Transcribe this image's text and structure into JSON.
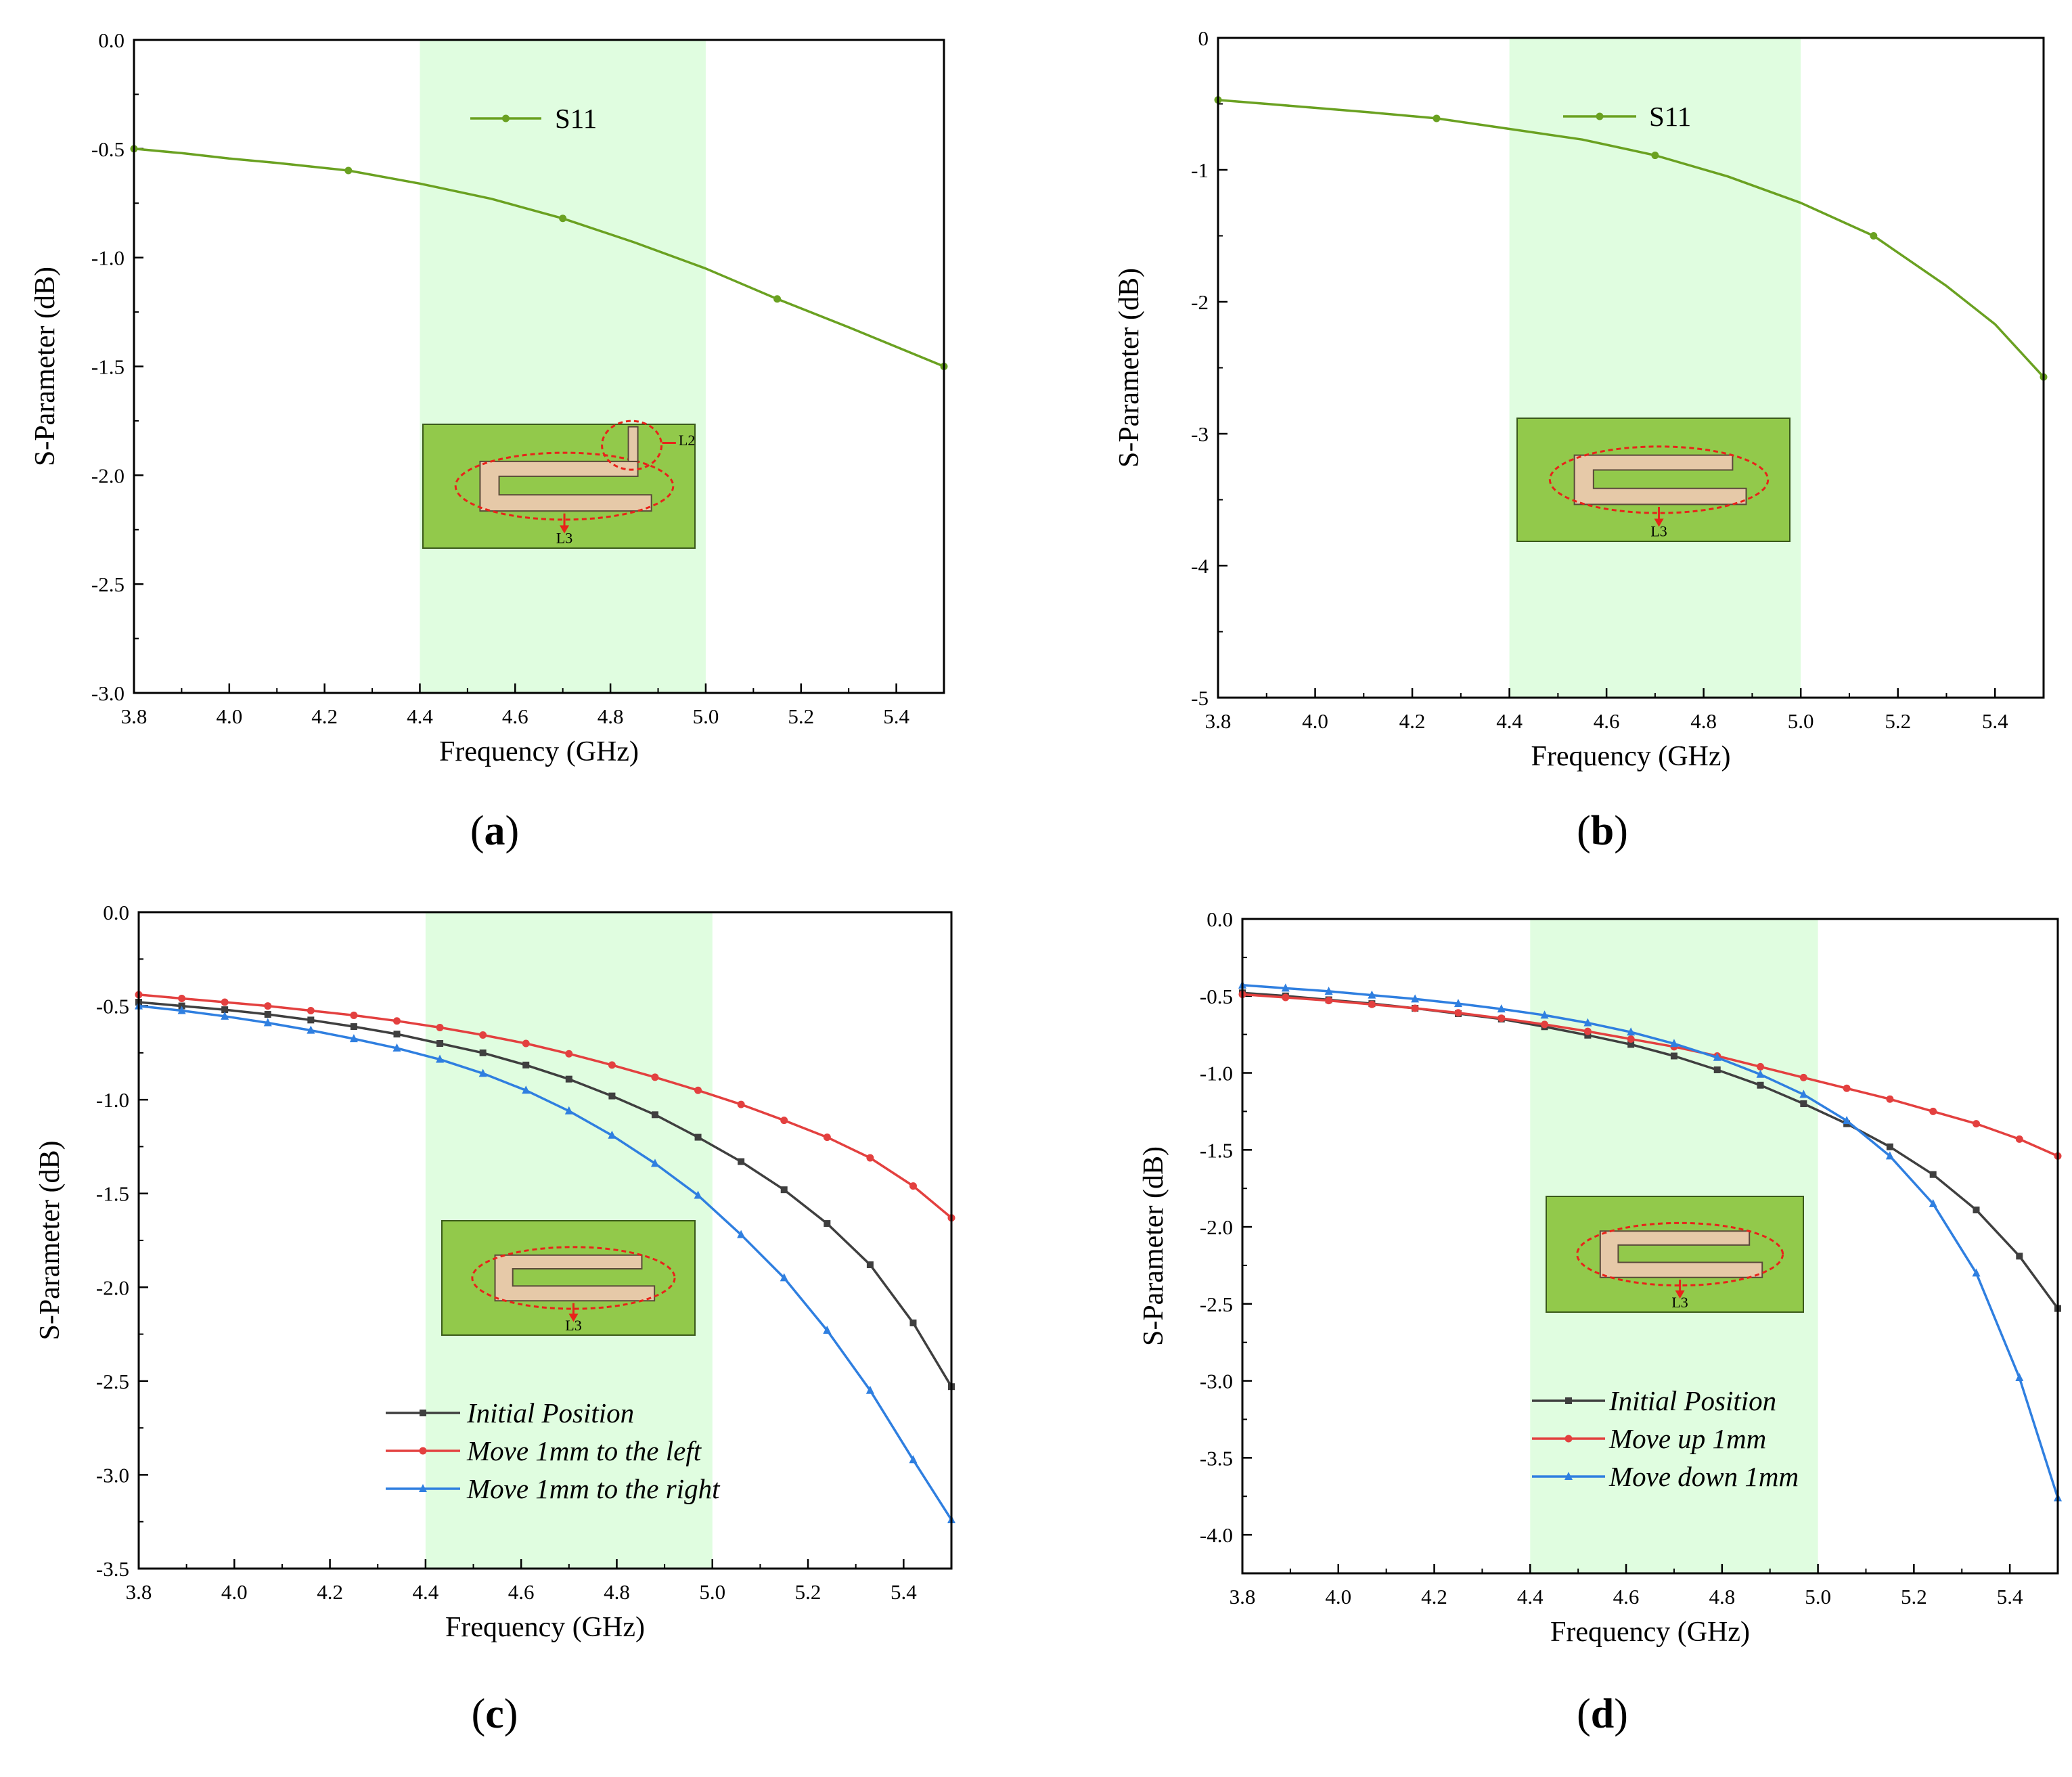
{
  "chart_data": [
    {
      "panel": "a",
      "panel_label": "a",
      "type": "line",
      "xlabel": "Frequency (GHz)",
      "ylabel": "S-Parameter (dB)",
      "xlim": [
        3.8,
        5.5
      ],
      "ylim": [
        -3.0,
        0.0
      ],
      "xticks": [
        "3.8",
        "4.0",
        "4.2",
        "4.4",
        "4.6",
        "4.8",
        "5.0",
        "5.2",
        "5.4"
      ],
      "yticks": [
        "0.0",
        "-0.5",
        "-1.0",
        "-1.5",
        "-2.0",
        "-2.5",
        "-3.0"
      ],
      "highlight_band": [
        4.4,
        5.0
      ],
      "legend_style": "normal",
      "inset": {
        "labels": [
          "L2",
          "L3"
        ]
      },
      "series": [
        {
          "name": "S11",
          "color": "#6aa121",
          "marker": "circle",
          "x": [
            3.8,
            3.9,
            4.0,
            4.1,
            4.25,
            4.4,
            4.55,
            4.7,
            4.85,
            5.0,
            5.15,
            5.3,
            5.5
          ],
          "values": [
            -0.5,
            -0.52,
            -0.545,
            -0.565,
            -0.6,
            -0.66,
            -0.73,
            -0.82,
            -0.93,
            -1.05,
            -1.19,
            -1.32,
            -1.5
          ],
          "marker_x": [
            3.8,
            4.25,
            4.7,
            5.15,
            5.5
          ]
        }
      ]
    },
    {
      "panel": "b",
      "panel_label": "b",
      "type": "line",
      "xlabel": "Frequency (GHz)",
      "ylabel": "S-Parameter (dB)",
      "xlim": [
        3.8,
        5.5
      ],
      "ylim": [
        -5,
        0
      ],
      "xticks": [
        "3.8",
        "4.0",
        "4.2",
        "4.4",
        "4.6",
        "4.8",
        "5.0",
        "5.2",
        "5.4"
      ],
      "yticks": [
        "0",
        "-1",
        "-2",
        "-3",
        "-4",
        "-5"
      ],
      "highlight_band": [
        4.4,
        5.0
      ],
      "legend_style": "normal",
      "inset": {
        "labels": [
          "L3"
        ]
      },
      "series": [
        {
          "name": "S11",
          "color": "#6aa121",
          "marker": "circle",
          "x": [
            3.8,
            3.9,
            4.0,
            4.1,
            4.25,
            4.4,
            4.55,
            4.7,
            4.85,
            5.0,
            5.15,
            5.3,
            5.4,
            5.5
          ],
          "values": [
            -0.47,
            -0.5,
            -0.53,
            -0.56,
            -0.61,
            -0.69,
            -0.77,
            -0.89,
            -1.05,
            -1.25,
            -1.5,
            -1.88,
            -2.17,
            -2.57
          ],
          "marker_x": [
            3.8,
            4.25,
            4.7,
            5.15,
            5.5
          ]
        }
      ]
    },
    {
      "panel": "c",
      "panel_label": "c",
      "type": "line",
      "xlabel": "Frequency (GHz)",
      "ylabel": "S-Parameter (dB)",
      "xlim": [
        3.8,
        5.5
      ],
      "ylim": [
        -3.5,
        0.0
      ],
      "xticks": [
        "3.8",
        "4.0",
        "4.2",
        "4.4",
        "4.6",
        "4.8",
        "5.0",
        "5.2",
        "5.4"
      ],
      "yticks": [
        "0.0",
        "-0.5",
        "-1.0",
        "-1.5",
        "-2.0",
        "-2.5",
        "-3.0",
        "-3.5"
      ],
      "highlight_band": [
        4.4,
        5.0
      ],
      "legend_style": "italic",
      "inset": {
        "labels": [
          "L3"
        ]
      },
      "series": [
        {
          "name": "Initial Position",
          "color": "#3f3f3f",
          "marker": "square",
          "x": [
            3.8,
            3.89,
            3.98,
            4.07,
            4.16,
            4.25,
            4.34,
            4.43,
            4.52,
            4.61,
            4.7,
            4.79,
            4.88,
            4.97,
            5.06,
            5.15,
            5.24,
            5.33,
            5.42,
            5.5
          ],
          "values": [
            -0.48,
            -0.5,
            -0.52,
            -0.545,
            -0.575,
            -0.61,
            -0.65,
            -0.7,
            -0.75,
            -0.815,
            -0.89,
            -0.98,
            -1.08,
            -1.2,
            -1.33,
            -1.48,
            -1.66,
            -1.88,
            -2.19,
            -2.53
          ]
        },
        {
          "name": "Move 1mm to the left",
          "color": "#e3403f",
          "marker": "circle",
          "x": [
            3.8,
            3.89,
            3.98,
            4.07,
            4.16,
            4.25,
            4.34,
            4.43,
            4.52,
            4.61,
            4.7,
            4.79,
            4.88,
            4.97,
            5.06,
            5.15,
            5.24,
            5.33,
            5.42,
            5.5
          ],
          "values": [
            -0.44,
            -0.46,
            -0.48,
            -0.5,
            -0.525,
            -0.55,
            -0.58,
            -0.615,
            -0.655,
            -0.7,
            -0.755,
            -0.815,
            -0.88,
            -0.95,
            -1.025,
            -1.11,
            -1.2,
            -1.31,
            -1.46,
            -1.63
          ]
        },
        {
          "name": "Move 1mm to the right",
          "color": "#2f7fe0",
          "marker": "triangle",
          "x": [
            3.8,
            3.89,
            3.98,
            4.07,
            4.16,
            4.25,
            4.34,
            4.43,
            4.52,
            4.61,
            4.7,
            4.79,
            4.88,
            4.97,
            5.06,
            5.15,
            5.24,
            5.33,
            5.42,
            5.5
          ],
          "values": [
            -0.5,
            -0.525,
            -0.555,
            -0.59,
            -0.63,
            -0.675,
            -0.725,
            -0.785,
            -0.86,
            -0.95,
            -1.06,
            -1.19,
            -1.34,
            -1.51,
            -1.72,
            -1.95,
            -2.23,
            -2.55,
            -2.92,
            -3.24
          ]
        }
      ]
    },
    {
      "panel": "d",
      "panel_label": "d",
      "type": "line",
      "xlabel": "Frequency (GHz)",
      "ylabel": "S-Parameter (dB)",
      "xlim": [
        3.8,
        5.5
      ],
      "ylim": [
        -4.25,
        0.0
      ],
      "xticks": [
        "3.8",
        "4.0",
        "4.2",
        "4.4",
        "4.6",
        "4.8",
        "5.0",
        "5.2",
        "5.4"
      ],
      "yticks": [
        "0.0",
        "-0.5",
        "-1.0",
        "-1.5",
        "-2.0",
        "-2.5",
        "-3.0",
        "-3.5",
        "-4.0"
      ],
      "highlight_band": [
        4.4,
        5.0
      ],
      "legend_style": "italic",
      "inset": {
        "labels": [
          "L3"
        ]
      },
      "series": [
        {
          "name": "Initial Position",
          "color": "#3f3f3f",
          "marker": "square",
          "x": [
            3.8,
            3.89,
            3.98,
            4.07,
            4.16,
            4.25,
            4.34,
            4.43,
            4.52,
            4.61,
            4.7,
            4.79,
            4.88,
            4.97,
            5.06,
            5.15,
            5.24,
            5.33,
            5.42,
            5.5
          ],
          "values": [
            -0.48,
            -0.5,
            -0.525,
            -0.55,
            -0.58,
            -0.615,
            -0.65,
            -0.7,
            -0.755,
            -0.815,
            -0.89,
            -0.98,
            -1.08,
            -1.2,
            -1.33,
            -1.48,
            -1.66,
            -1.89,
            -2.19,
            -2.53
          ]
        },
        {
          "name": "Move up 1mm",
          "color": "#e3403f",
          "marker": "circle",
          "x": [
            3.8,
            3.89,
            3.98,
            4.07,
            4.16,
            4.25,
            4.34,
            4.43,
            4.52,
            4.61,
            4.7,
            4.79,
            4.88,
            4.97,
            5.06,
            5.15,
            5.24,
            5.33,
            5.42,
            5.5
          ],
          "values": [
            -0.49,
            -0.51,
            -0.53,
            -0.555,
            -0.58,
            -0.61,
            -0.645,
            -0.685,
            -0.73,
            -0.78,
            -0.83,
            -0.89,
            -0.96,
            -1.03,
            -1.1,
            -1.17,
            -1.25,
            -1.33,
            -1.43,
            -1.54
          ]
        },
        {
          "name": "Move down 1mm",
          "color": "#2f7fe0",
          "marker": "triangle",
          "x": [
            3.8,
            3.89,
            3.98,
            4.07,
            4.16,
            4.25,
            4.34,
            4.43,
            4.52,
            4.61,
            4.7,
            4.79,
            4.88,
            4.97,
            5.06,
            5.15,
            5.24,
            5.33,
            5.42,
            5.5
          ],
          "values": [
            -0.43,
            -0.45,
            -0.47,
            -0.495,
            -0.52,
            -0.55,
            -0.585,
            -0.625,
            -0.675,
            -0.735,
            -0.81,
            -0.9,
            -1.01,
            -1.14,
            -1.31,
            -1.54,
            -1.85,
            -2.3,
            -2.98,
            -3.76
          ]
        }
      ]
    }
  ]
}
